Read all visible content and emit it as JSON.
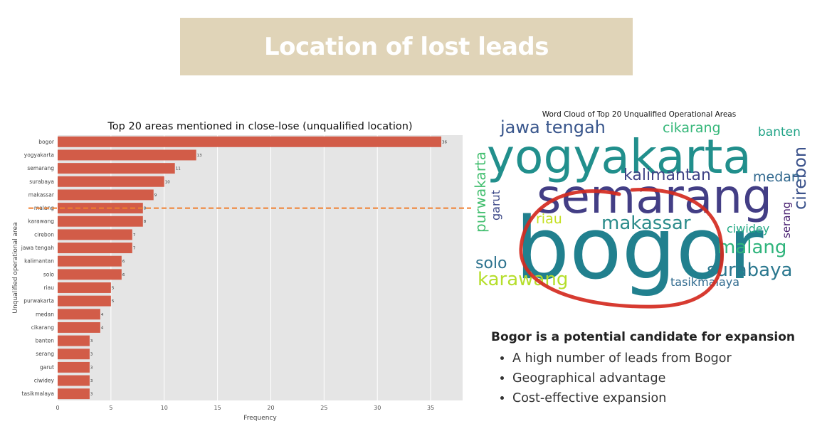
{
  "slide": {
    "title": "Location of lost leads",
    "heading": "Bogor is a potential candidate for expansion",
    "bullets": [
      "A high number of leads from Bogor",
      "Geographical advantage",
      "Cost-effective expansion"
    ]
  },
  "chart_data": [
    {
      "type": "bar",
      "orientation": "horizontal",
      "title": "Top 20 areas mentioned in close-lose (unqualified location)",
      "xlabel": "Frequency",
      "ylabel": "Unqualified operational area",
      "categories": [
        "bogor",
        "yogyakarta",
        "semarang",
        "surabaya",
        "makassar",
        "malang",
        "karawang",
        "cirebon",
        "jawa tengah",
        "kalimantan",
        "solo",
        "riau",
        "purwakarta",
        "medan",
        "cikarang",
        "banten",
        "serang",
        "garut",
        "ciwidey",
        "tasikmalaya"
      ],
      "values": [
        36,
        13,
        11,
        10,
        9,
        8,
        8,
        7,
        7,
        6,
        6,
        5,
        5,
        4,
        4,
        3,
        3,
        3,
        3,
        3
      ],
      "xlim": [
        0,
        38
      ],
      "xticks": [
        0,
        5,
        10,
        15,
        20,
        25,
        30,
        35
      ],
      "grid": true,
      "bar_color": "#d25c48",
      "background": "#e5e5e5",
      "threshold_line_color": "#f07f2e"
    },
    {
      "type": "wordcloud",
      "title": "Word Cloud of Top 20 Unqualified Operational Areas",
      "words": [
        {
          "text": "bogor",
          "color": "#21808e"
        },
        {
          "text": "yogyakarta",
          "color": "#218f8c"
        },
        {
          "text": "semarang",
          "color": "#433e85"
        },
        {
          "text": "surabaya",
          "color": "#2a778e"
        },
        {
          "text": "makassar",
          "color": "#2a8b8a"
        },
        {
          "text": "malang",
          "color": "#2fb47c"
        },
        {
          "text": "karawang",
          "color": "#b5de2b"
        },
        {
          "text": "jawa tengah",
          "color": "#39568c"
        },
        {
          "text": "cirebon",
          "color": "#3b528b"
        },
        {
          "text": "kalimantan",
          "color": "#414487"
        },
        {
          "text": "solo",
          "color": "#2c728e"
        },
        {
          "text": "riau",
          "color": "#c4e020"
        },
        {
          "text": "purwakarta",
          "color": "#44bf70"
        },
        {
          "text": "medan",
          "color": "#31688e"
        },
        {
          "text": "cikarang",
          "color": "#35b779"
        },
        {
          "text": "banten",
          "color": "#20a386"
        },
        {
          "text": "serang",
          "color": "#481f70"
        },
        {
          "text": "garut",
          "color": "#3e4a89"
        },
        {
          "text": "ciwidey",
          "color": "#22a884"
        },
        {
          "text": "tasikmalaya",
          "color": "#306a8e"
        }
      ],
      "highlight_color": "#d42a20"
    }
  ]
}
